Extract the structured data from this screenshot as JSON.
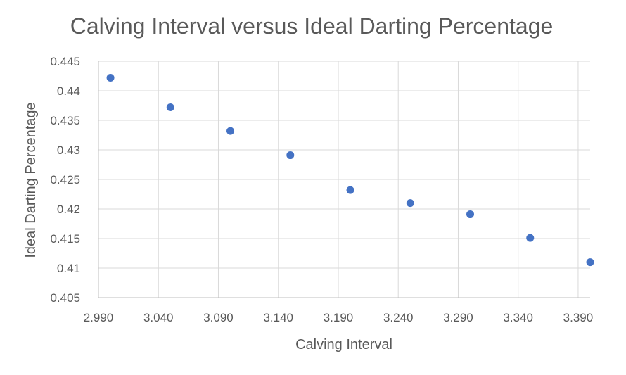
{
  "chart_data": {
    "type": "scatter",
    "title": "Calving Interval versus Ideal Darting Percentage",
    "xlabel": "Calving Interval",
    "ylabel": "Ideal Darting Percentage",
    "xlim": [
      2.99,
      3.4
    ],
    "ylim": [
      0.405,
      0.445
    ],
    "x_ticks": [
      "2.990",
      "3.040",
      "3.090",
      "3.140",
      "3.190",
      "3.240",
      "3.290",
      "3.340",
      "3.390"
    ],
    "y_ticks": [
      "0.405",
      "0.41",
      "0.415",
      "0.42",
      "0.425",
      "0.43",
      "0.435",
      "0.44",
      "0.445"
    ],
    "grid": "vertical and horizontal major gridlines",
    "legend": "none",
    "marker_color": "#4472C4",
    "series": [
      {
        "x": [
          3.0,
          3.05,
          3.1,
          3.15,
          3.2,
          3.25,
          3.3,
          3.35,
          3.4
        ],
        "y": [
          0.4422,
          0.4372,
          0.4332,
          0.4291,
          0.4232,
          0.421,
          0.4191,
          0.4151,
          0.411
        ]
      }
    ]
  }
}
